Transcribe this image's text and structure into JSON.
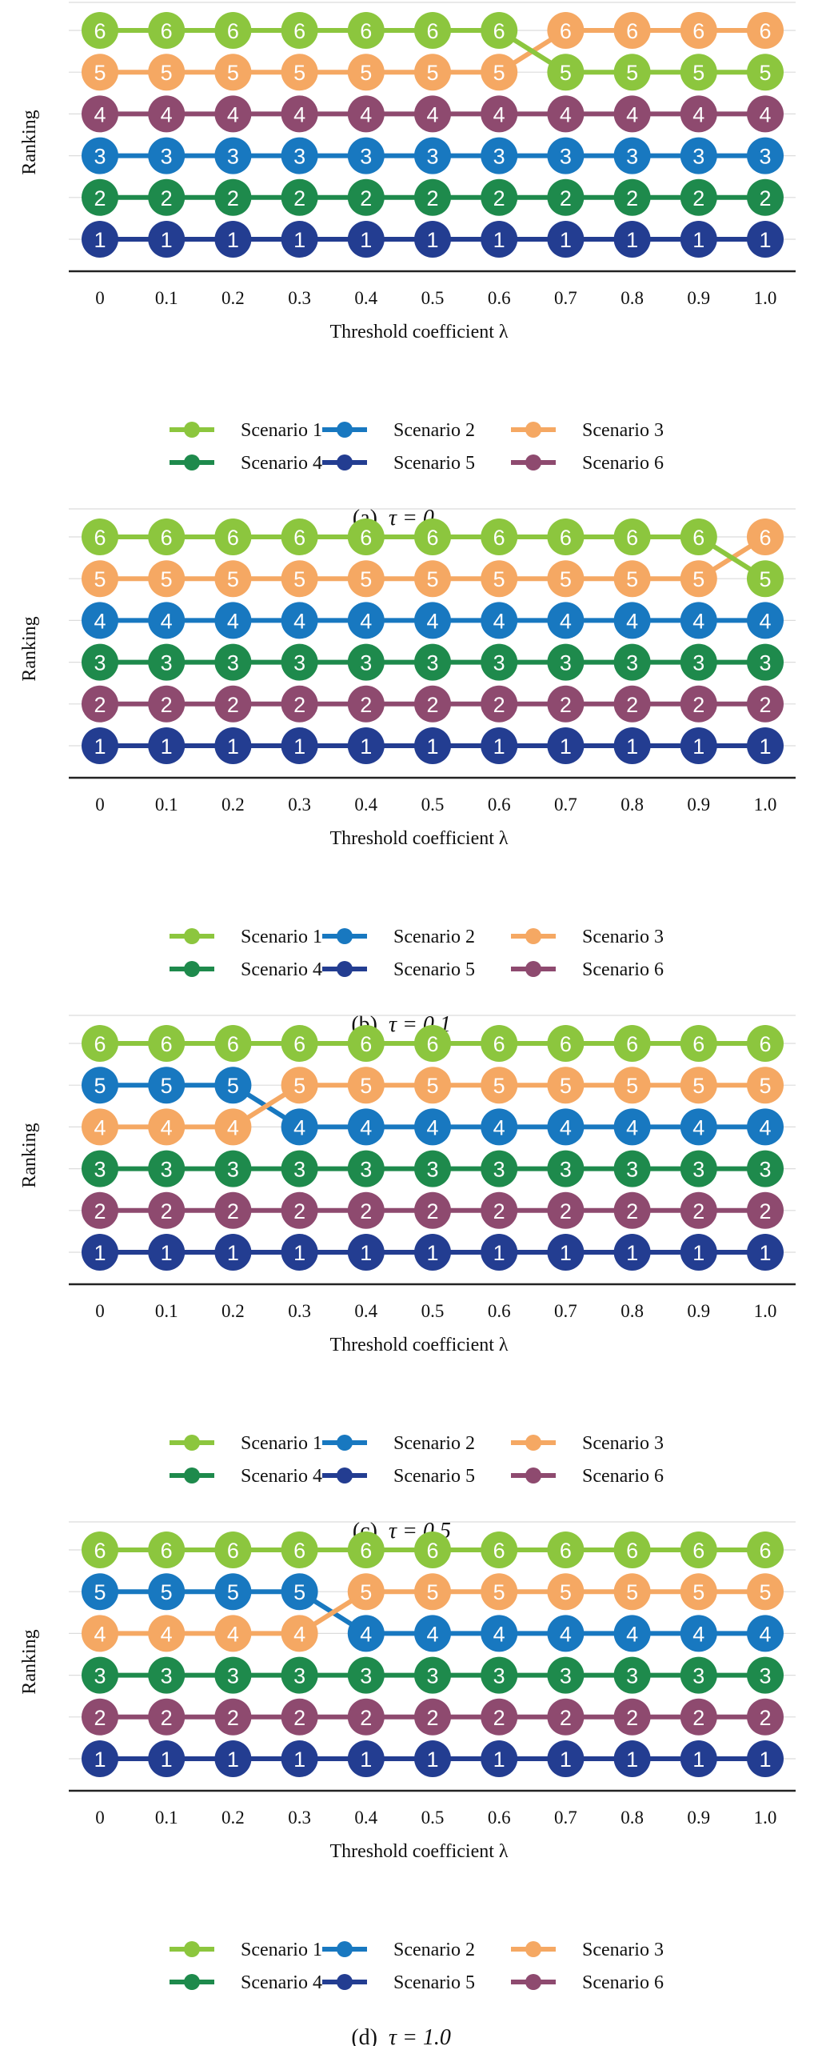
{
  "chart_data": [
    {
      "type": "line",
      "panel": "(a)",
      "caption_prefix": "(a)",
      "tau_label": "τ = 0",
      "xlabel": "Threshold coefficient λ",
      "ylabel": "Ranking",
      "x": [
        "0",
        "0.1",
        "0.2",
        "0.3",
        "0.4",
        "0.5",
        "0.6",
        "0.7",
        "0.8",
        "0.9",
        "1.0"
      ],
      "ylim": [
        1,
        6
      ],
      "series": [
        {
          "name": "Scenario 1",
          "values": [
            6,
            6,
            6,
            6,
            6,
            6,
            6,
            5,
            5,
            5,
            5
          ]
        },
        {
          "name": "Scenario 2",
          "values": [
            3,
            3,
            3,
            3,
            3,
            3,
            3,
            3,
            3,
            3,
            3
          ]
        },
        {
          "name": "Scenario 3",
          "values": [
            5,
            5,
            5,
            5,
            5,
            5,
            5,
            6,
            6,
            6,
            6
          ]
        },
        {
          "name": "Scenario 4",
          "values": [
            2,
            2,
            2,
            2,
            2,
            2,
            2,
            2,
            2,
            2,
            2
          ]
        },
        {
          "name": "Scenario 5",
          "values": [
            1,
            1,
            1,
            1,
            1,
            1,
            1,
            1,
            1,
            1,
            1
          ]
        },
        {
          "name": "Scenario 6",
          "values": [
            4,
            4,
            4,
            4,
            4,
            4,
            4,
            4,
            4,
            4,
            4
          ]
        }
      ]
    },
    {
      "type": "line",
      "panel": "(b)",
      "caption_prefix": "(b)",
      "tau_label": "τ = 0.1",
      "xlabel": "Threshold coefficient λ",
      "ylabel": "Ranking",
      "x": [
        "0",
        "0.1",
        "0.2",
        "0.3",
        "0.4",
        "0.5",
        "0.6",
        "0.7",
        "0.8",
        "0.9",
        "1.0"
      ],
      "ylim": [
        1,
        6
      ],
      "series": [
        {
          "name": "Scenario 1",
          "values": [
            6,
            6,
            6,
            6,
            6,
            6,
            6,
            6,
            6,
            6,
            5
          ]
        },
        {
          "name": "Scenario 2",
          "values": [
            4,
            4,
            4,
            4,
            4,
            4,
            4,
            4,
            4,
            4,
            4
          ]
        },
        {
          "name": "Scenario 3",
          "values": [
            5,
            5,
            5,
            5,
            5,
            5,
            5,
            5,
            5,
            5,
            6
          ]
        },
        {
          "name": "Scenario 4",
          "values": [
            3,
            3,
            3,
            3,
            3,
            3,
            3,
            3,
            3,
            3,
            3
          ]
        },
        {
          "name": "Scenario 5",
          "values": [
            1,
            1,
            1,
            1,
            1,
            1,
            1,
            1,
            1,
            1,
            1
          ]
        },
        {
          "name": "Scenario 6",
          "values": [
            2,
            2,
            2,
            2,
            2,
            2,
            2,
            2,
            2,
            2,
            2
          ]
        }
      ]
    },
    {
      "type": "line",
      "panel": "(c)",
      "caption_prefix": "(c)",
      "tau_label": "τ = 0.5",
      "xlabel": "Threshold coefficient λ",
      "ylabel": "Ranking",
      "x": [
        "0",
        "0.1",
        "0.2",
        "0.3",
        "0.4",
        "0.5",
        "0.6",
        "0.7",
        "0.8",
        "0.9",
        "1.0"
      ],
      "ylim": [
        1,
        6
      ],
      "series": [
        {
          "name": "Scenario 1",
          "values": [
            6,
            6,
            6,
            6,
            6,
            6,
            6,
            6,
            6,
            6,
            6
          ]
        },
        {
          "name": "Scenario 2",
          "values": [
            5,
            5,
            5,
            4,
            4,
            4,
            4,
            4,
            4,
            4,
            4
          ]
        },
        {
          "name": "Scenario 3",
          "values": [
            4,
            4,
            4,
            5,
            5,
            5,
            5,
            5,
            5,
            5,
            5
          ]
        },
        {
          "name": "Scenario 4",
          "values": [
            3,
            3,
            3,
            3,
            3,
            3,
            3,
            3,
            3,
            3,
            3
          ]
        },
        {
          "name": "Scenario 5",
          "values": [
            1,
            1,
            1,
            1,
            1,
            1,
            1,
            1,
            1,
            1,
            1
          ]
        },
        {
          "name": "Scenario 6",
          "values": [
            2,
            2,
            2,
            2,
            2,
            2,
            2,
            2,
            2,
            2,
            2
          ]
        }
      ]
    },
    {
      "type": "line",
      "panel": "(d)",
      "caption_prefix": "(d)",
      "tau_label": "τ = 1.0",
      "xlabel": "Threshold coefficient λ",
      "ylabel": "Ranking",
      "x": [
        "0",
        "0.1",
        "0.2",
        "0.3",
        "0.4",
        "0.5",
        "0.6",
        "0.7",
        "0.8",
        "0.9",
        "1.0"
      ],
      "ylim": [
        1,
        6
      ],
      "series": [
        {
          "name": "Scenario 1",
          "values": [
            6,
            6,
            6,
            6,
            6,
            6,
            6,
            6,
            6,
            6,
            6
          ]
        },
        {
          "name": "Scenario 2",
          "values": [
            5,
            5,
            5,
            5,
            4,
            4,
            4,
            4,
            4,
            4,
            4
          ]
        },
        {
          "name": "Scenario 3",
          "values": [
            4,
            4,
            4,
            4,
            5,
            5,
            5,
            5,
            5,
            5,
            5
          ]
        },
        {
          "name": "Scenario 4",
          "values": [
            3,
            3,
            3,
            3,
            3,
            3,
            3,
            3,
            3,
            3,
            3
          ]
        },
        {
          "name": "Scenario 5",
          "values": [
            1,
            1,
            1,
            1,
            1,
            1,
            1,
            1,
            1,
            1,
            1
          ]
        },
        {
          "name": "Scenario 6",
          "values": [
            2,
            2,
            2,
            2,
            2,
            2,
            2,
            2,
            2,
            2,
            2
          ]
        }
      ]
    }
  ],
  "colors": {
    "Scenario 1": "#8cc63e",
    "Scenario 2": "#1878c0",
    "Scenario 3": "#f5a863",
    "Scenario 4": "#1e8a4c",
    "Scenario 5": "#233d91",
    "Scenario 6": "#8e4a6f",
    "grid": "#dcdcdc",
    "axis": "#222222"
  }
}
